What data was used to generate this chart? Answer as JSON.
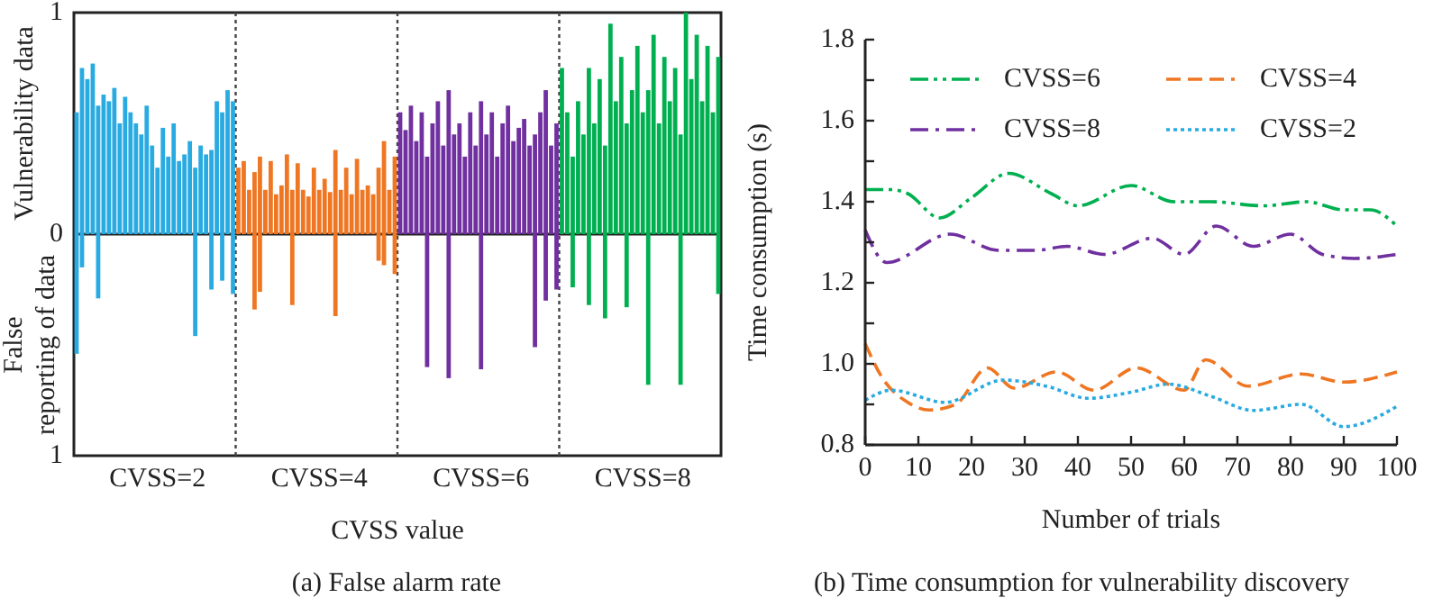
{
  "chart_data": [
    {
      "type": "bar",
      "title": "(a) False alarm rate",
      "xlabel": "CVSS value",
      "annotations": [
        "Vulnerability data",
        "False reporting of data"
      ],
      "categories": [
        null,
        null,
        null,
        null,
        null,
        null,
        null,
        null,
        null,
        null,
        null,
        null,
        null,
        null,
        null,
        "CVSS=2",
        null,
        null,
        null,
        null,
        null,
        null,
        null,
        null,
        null,
        null,
        null,
        null,
        null,
        null,
        null,
        null,
        null,
        null,
        null,
        null,
        null,
        null,
        null,
        null,
        null,
        null,
        null,
        null,
        null,
        "CVSS=4",
        null,
        null,
        null,
        null,
        null,
        null,
        null,
        null,
        null,
        null,
        null,
        null,
        null,
        null,
        null,
        null,
        null,
        null,
        null,
        null,
        null,
        null,
        null,
        null,
        null,
        null,
        null,
        null,
        null,
        "CVSS=6",
        null,
        null,
        null,
        null,
        null,
        null,
        null,
        null,
        null,
        null,
        null,
        null,
        null,
        null,
        null,
        null,
        null,
        null,
        null,
        null,
        null,
        null,
        null,
        null,
        null,
        null,
        null,
        null,
        null,
        "CVSS=8",
        null,
        null,
        null,
        null,
        null,
        null,
        null,
        null,
        null,
        null,
        null,
        null,
        null,
        null
      ],
      "ylim": [
        -1,
        1
      ],
      "yticks": [
        {
          "value": -1,
          "label": "1"
        },
        0,
        1
      ],
      "series": [
        {
          "colors": [
            "#29abe2",
            "#29abe2",
            "#29abe2",
            "#29abe2",
            "#29abe2",
            "#29abe2",
            "#29abe2",
            "#29abe2",
            "#29abe2",
            "#29abe2",
            "#29abe2",
            "#29abe2",
            "#29abe2",
            "#29abe2",
            "#29abe2",
            "#29abe2",
            "#29abe2",
            "#29abe2",
            "#29abe2",
            "#29abe2",
            "#29abe2",
            "#29abe2",
            "#29abe2",
            "#29abe2",
            "#29abe2",
            "#29abe2",
            "#29abe2",
            "#29abe2",
            "#29abe2",
            "#29abe2",
            "#ef7622",
            "#ef7622",
            "#ef7622",
            "#ef7622",
            "#ef7622",
            "#ef7622",
            "#ef7622",
            "#ef7622",
            "#ef7622",
            "#ef7622",
            "#ef7622",
            "#ef7622",
            "#ef7622",
            "#ef7622",
            "#ef7622",
            "#ef7622",
            "#ef7622",
            "#ef7622",
            "#ef7622",
            "#ef7622",
            "#ef7622",
            "#ef7622",
            "#ef7622",
            "#ef7622",
            "#ef7622",
            "#ef7622",
            "#ef7622",
            "#ef7622",
            "#ef7622",
            "#ef7622",
            "#7030a0",
            "#7030a0",
            "#7030a0",
            "#7030a0",
            "#7030a0",
            "#7030a0",
            "#7030a0",
            "#7030a0",
            "#7030a0",
            "#7030a0",
            "#7030a0",
            "#7030a0",
            "#7030a0",
            "#7030a0",
            "#7030a0",
            "#7030a0",
            "#7030a0",
            "#7030a0",
            "#7030a0",
            "#7030a0",
            "#7030a0",
            "#7030a0",
            "#7030a0",
            "#7030a0",
            "#7030a0",
            "#7030a0",
            "#7030a0",
            "#7030a0",
            "#7030a0",
            "#7030a0",
            "#00b050",
            "#00b050",
            "#00b050",
            "#00b050",
            "#00b050",
            "#00b050",
            "#00b050",
            "#00b050",
            "#00b050",
            "#00b050",
            "#00b050",
            "#00b050",
            "#00b050",
            "#00b050",
            "#00b050",
            "#00b050",
            "#00b050",
            "#00b050",
            "#00b050",
            "#00b050",
            "#00b050",
            "#00b050",
            "#00b050",
            "#00b050",
            "#00b050",
            "#00b050",
            "#00b050",
            "#00b050",
            "#00b050",
            "#00b050"
          ],
          "values": [
            0.55,
            0.75,
            0.7,
            0.77,
            0.58,
            0.63,
            0.6,
            0.66,
            0.5,
            0.62,
            0.55,
            0.5,
            0.45,
            0.58,
            0.4,
            0.3,
            0.48,
            0.35,
            0.5,
            0.33,
            0.36,
            0.42,
            0.3,
            0.4,
            0.36,
            0.38,
            0.6,
            0.55,
            0.65,
            0.6,
            0.3,
            0.33,
            0.2,
            0.28,
            0.35,
            0.2,
            0.33,
            0.18,
            0.22,
            0.36,
            0.2,
            0.32,
            0.2,
            0.17,
            0.3,
            0.2,
            0.25,
            0.19,
            0.38,
            0.2,
            0.3,
            0.18,
            0.34,
            0.2,
            0.22,
            0.18,
            0.3,
            0.42,
            0.2,
            0.35,
            0.55,
            0.47,
            0.58,
            0.42,
            0.55,
            0.35,
            0.5,
            0.6,
            0.4,
            0.65,
            0.45,
            0.5,
            0.35,
            0.55,
            0.4,
            0.6,
            0.45,
            0.55,
            0.35,
            0.5,
            0.58,
            0.42,
            0.48,
            0.52,
            0.4,
            0.45,
            0.55,
            0.65,
            0.4,
            0.5,
            0.75,
            0.55,
            0.35,
            0.6,
            0.45,
            0.75,
            0.5,
            0.7,
            0.4,
            0.95,
            0.6,
            0.8,
            0.5,
            0.65,
            0.85,
            0.55,
            0.65,
            0.9,
            0.5,
            0.8,
            0.6,
            0.75,
            0.45,
            1.0,
            0.7,
            0.9,
            0.6,
            0.85,
            0.55,
            0.8
          ]
        },
        {
          "colors": [
            "#29abe2",
            "#29abe2",
            null,
            null,
            "#29abe2",
            null,
            null,
            null,
            null,
            null,
            null,
            null,
            null,
            null,
            null,
            null,
            null,
            null,
            null,
            null,
            null,
            null,
            "#29abe2",
            null,
            null,
            "#29abe2",
            null,
            "#29abe2",
            null,
            "#29abe2",
            null,
            null,
            null,
            "#ef7622",
            "#ef7622",
            null,
            null,
            null,
            null,
            null,
            "#ef7622",
            null,
            null,
            null,
            null,
            null,
            null,
            null,
            "#ef7622",
            null,
            null,
            null,
            null,
            null,
            null,
            null,
            "#ef7622",
            "#ef7622",
            null,
            "#ef7622",
            null,
            null,
            null,
            null,
            null,
            "#7030a0",
            null,
            null,
            null,
            "#7030a0",
            null,
            null,
            null,
            null,
            null,
            "#7030a0",
            null,
            null,
            null,
            null,
            null,
            null,
            null,
            null,
            null,
            "#7030a0",
            null,
            "#7030a0",
            null,
            "#7030a0",
            null,
            null,
            "#00b050",
            null,
            null,
            "#00b050",
            null,
            null,
            "#00b050",
            null,
            null,
            null,
            "#00b050",
            null,
            null,
            null,
            "#00b050",
            null,
            null,
            null,
            null,
            null,
            "#00b050",
            null,
            null,
            null,
            null,
            null,
            null,
            "#00b050"
          ],
          "values": [
            -0.54,
            -0.15,
            null,
            null,
            -0.29,
            null,
            null,
            null,
            null,
            null,
            null,
            null,
            null,
            null,
            null,
            null,
            null,
            null,
            null,
            null,
            null,
            null,
            -0.46,
            null,
            null,
            -0.25,
            null,
            -0.21,
            null,
            -0.27,
            null,
            null,
            null,
            -0.34,
            -0.26,
            null,
            null,
            null,
            null,
            null,
            -0.32,
            null,
            null,
            null,
            null,
            null,
            null,
            null,
            -0.37,
            null,
            null,
            null,
            null,
            null,
            null,
            null,
            -0.12,
            -0.14,
            null,
            -0.18,
            null,
            null,
            null,
            null,
            null,
            -0.6,
            null,
            null,
            null,
            -0.65,
            null,
            null,
            null,
            null,
            null,
            -0.61,
            null,
            null,
            null,
            null,
            null,
            null,
            null,
            null,
            null,
            -0.51,
            null,
            -0.3,
            null,
            -0.25,
            null,
            null,
            -0.24,
            null,
            null,
            -0.32,
            null,
            null,
            -0.38,
            null,
            null,
            null,
            -0.33,
            null,
            null,
            null,
            -0.68,
            null,
            null,
            null,
            null,
            null,
            -0.68,
            null,
            null,
            null,
            null,
            null,
            null,
            -0.27
          ]
        }
      ]
    },
    {
      "type": "line",
      "title": "(b) Time consumption for vulnerability discovery",
      "xlabel": "Number of trials",
      "ylabel": "Time consumption (s)",
      "xlim": [
        0,
        100
      ],
      "xticks": [
        0,
        10,
        20,
        30,
        40,
        50,
        60,
        70,
        80,
        90,
        100
      ],
      "ylim": [
        0.8,
        1.8
      ],
      "yticks": [
        0.8,
        {
          "value": 0.9,
          "label": null
        },
        {
          "value": 1.0,
          "label": "1.0"
        },
        {
          "value": 1.1,
          "label": null
        },
        1.2,
        {
          "value": 1.3,
          "label": null
        },
        1.4,
        {
          "value": 1.5,
          "label": null
        },
        1.6,
        {
          "value": 1.7,
          "label": null
        },
        1.8
      ],
      "legend": "top",
      "marker": "none",
      "series": [
        {
          "name": "CVSS=6",
          "color": "#00b050",
          "line_style": "dashdotdot",
          "x": [
            0,
            5,
            8,
            14,
            20,
            27,
            35,
            40,
            50,
            58,
            65,
            75,
            83,
            90,
            95,
            100
          ],
          "values": [
            1.43,
            1.43,
            1.42,
            1.36,
            1.41,
            1.47,
            1.42,
            1.39,
            1.44,
            1.4,
            1.4,
            1.39,
            1.4,
            1.38,
            1.38,
            1.34
          ]
        },
        {
          "name": "CVSS=4",
          "color": "#ef7622",
          "line_style": "dashed",
          "x": [
            0,
            3,
            8,
            12,
            17,
            23,
            28,
            36,
            43,
            51,
            60,
            64,
            72,
            82,
            90,
            100
          ],
          "values": [
            1.05,
            0.97,
            0.905,
            0.886,
            0.9,
            0.99,
            0.94,
            0.98,
            0.935,
            0.99,
            0.935,
            1.01,
            0.945,
            0.975,
            0.955,
            0.98
          ]
        },
        {
          "name": "CVSS=8",
          "color": "#7030a0",
          "line_style": "dashdot",
          "x": [
            0,
            4,
            16,
            25,
            32,
            38,
            45,
            54,
            60,
            66,
            73,
            80,
            86,
            92,
            100
          ],
          "values": [
            1.33,
            1.25,
            1.32,
            1.28,
            1.28,
            1.29,
            1.27,
            1.31,
            1.27,
            1.34,
            1.29,
            1.32,
            1.27,
            1.26,
            1.27
          ]
        },
        {
          "name": "CVSS=2",
          "color": "#29abe2",
          "line_style": "dotted",
          "x": [
            0,
            5,
            15,
            26,
            34,
            42,
            50,
            57,
            65,
            73,
            82,
            90,
            100
          ],
          "values": [
            0.91,
            0.935,
            0.905,
            0.96,
            0.945,
            0.915,
            0.93,
            0.95,
            0.92,
            0.885,
            0.9,
            0.845,
            0.895
          ]
        }
      ]
    }
  ]
}
